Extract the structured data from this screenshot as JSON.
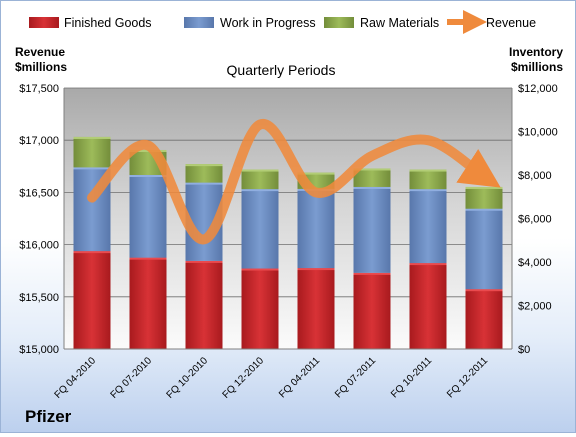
{
  "chart_data": {
    "type": "bar",
    "stacked": true,
    "company": "Pfizer",
    "title": "Quarterly Periods",
    "categories": [
      "FQ 04-2010",
      "FQ 07-2010",
      "FQ 10-2010",
      "FQ 12-2010",
      "FQ 04-2011",
      "FQ 07-2011",
      "FQ 10-2011",
      "FQ 12-2011"
    ],
    "left_axis": {
      "label_line1": "Revenue",
      "label_line2": "$millions",
      "range": [
        15000,
        17500
      ],
      "ticks": [
        "$15,000",
        "$15,500",
        "$16,000",
        "$16,500",
        "$17,000",
        "$17,500"
      ]
    },
    "right_axis": {
      "label_line1": "Inventory",
      "label_line2": "$millions",
      "range": [
        0,
        12000
      ],
      "ticks": [
        "$0",
        "$2,000",
        "$4,000",
        "$6,000",
        "$8,000",
        "$10,000",
        "$12,000"
      ]
    },
    "series": [
      {
        "name": "Finished Goods",
        "axis": "right",
        "color": "#c8262a",
        "values": [
          4500,
          4200,
          4050,
          3700,
          3720,
          3500,
          3950,
          2750
        ]
      },
      {
        "name": "Work in Progress",
        "axis": "right",
        "color": "#6a8dc3",
        "values": [
          3850,
          3800,
          3600,
          3650,
          3640,
          3950,
          3400,
          3700
        ]
      },
      {
        "name": "Raw Materials",
        "axis": "right",
        "color": "#8daa4c",
        "values": [
          1400,
          1150,
          850,
          900,
          750,
          850,
          900,
          1000
        ]
      },
      {
        "name": "Revenue",
        "axis": "left",
        "type": "line",
        "color": "#ef8a3c",
        "values": [
          16450,
          16950,
          16050,
          17150,
          16500,
          16850,
          17000,
          16650
        ]
      }
    ],
    "legend_position": "top",
    "grid": true
  }
}
